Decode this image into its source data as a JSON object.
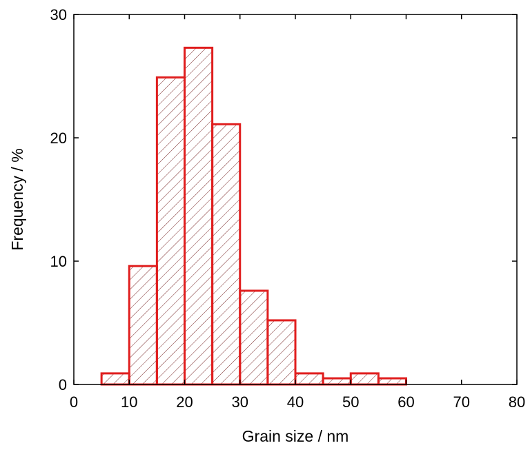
{
  "chart_data": {
    "type": "bar",
    "chart_kind": "histogram",
    "xlabel": "Grain size / nm",
    "ylabel": "Frequency / %",
    "xlim": [
      0,
      80
    ],
    "ylim": [
      0,
      30
    ],
    "xticks": [
      0,
      10,
      20,
      30,
      40,
      50,
      60,
      70,
      80
    ],
    "yticks": [
      0,
      10,
      20,
      30
    ],
    "xtick_labels": [
      "0",
      "10",
      "20",
      "30",
      "40",
      "50",
      "60",
      "70",
      "80"
    ],
    "ytick_labels": [
      "0",
      "10",
      "20",
      "30"
    ],
    "bins": [
      {
        "from": 5,
        "to": 10,
        "value": 0.9
      },
      {
        "from": 10,
        "to": 15,
        "value": 9.6
      },
      {
        "from": 15,
        "to": 20,
        "value": 24.9
      },
      {
        "from": 20,
        "to": 25,
        "value": 27.3
      },
      {
        "from": 25,
        "to": 30,
        "value": 21.1
      },
      {
        "from": 30,
        "to": 35,
        "value": 7.6
      },
      {
        "from": 35,
        "to": 40,
        "value": 5.2
      },
      {
        "from": 40,
        "to": 45,
        "value": 0.9
      },
      {
        "from": 45,
        "to": 50,
        "value": 0.5
      },
      {
        "from": 50,
        "to": 55,
        "value": 0.9
      },
      {
        "from": 55,
        "to": 60,
        "value": 0.5
      }
    ],
    "bar_style": "hatched",
    "grid": false,
    "legend": "none",
    "colors": {
      "bar_edge": "#e01e1e",
      "hatch": "#7a2a2a",
      "axes": "#000000"
    }
  }
}
